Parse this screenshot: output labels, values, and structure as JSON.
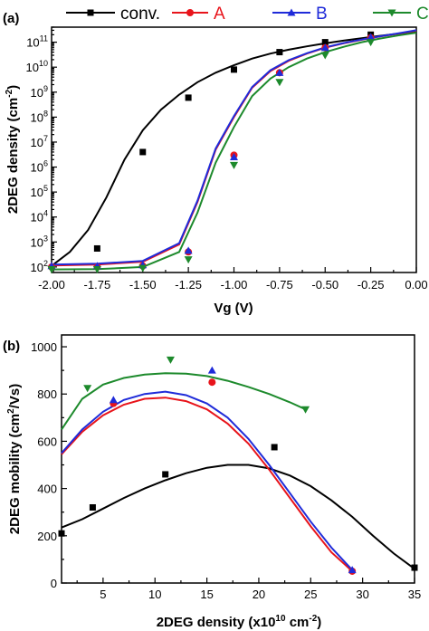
{
  "chart_data": [
    {
      "type": "line",
      "panel_label": "(a)",
      "xlabel": "Vg (V)",
      "ylabel": "2DEG density (cm",
      "ylabel_sup": "-2",
      "ylabel_close": ")",
      "yscale": "log",
      "xlim": [
        -2.0,
        0.0
      ],
      "ylim": [
        60,
        400000000000
      ],
      "x_tick_labels": [
        "-2.00",
        "-1.75",
        "-1.50",
        "-1.25",
        "-1.00",
        "-0.75",
        "-0.50",
        "-0.25",
        "0.00"
      ],
      "y_tick_labels": [
        "10^2",
        "10^3",
        "10^4",
        "10^5",
        "10^6",
        "10^7",
        "10^8",
        "10^9",
        "10^10",
        "10^11"
      ],
      "legend": {
        "placement": "top",
        "entries": [
          "conv.",
          "A",
          "B",
          "C"
        ]
      },
      "series": [
        {
          "name": "conv.",
          "color": "#000000",
          "marker": "square",
          "x": [
            -1.75,
            -1.5,
            -1.25,
            -1.0,
            -0.75,
            -0.5,
            -0.25
          ],
          "y": [
            550,
            4000000,
            600000000,
            8000000000,
            40000000000,
            100000000000,
            200000000000
          ],
          "fit_x": [
            -2.0,
            -1.9,
            -1.8,
            -1.7,
            -1.6,
            -1.5,
            -1.4,
            -1.3,
            -1.2,
            -1.1,
            -1.0,
            -0.9,
            -0.8,
            -0.7,
            -0.6,
            -0.5,
            -0.4,
            -0.3,
            -0.2,
            -0.1,
            0.0
          ],
          "fit_y": [
            110,
            400,
            3000,
            60000,
            2000000,
            30000000,
            200000000,
            800000000,
            2500000000,
            6000000000,
            12000000000,
            22000000000,
            35000000000,
            50000000000,
            68000000000,
            90000000000,
            115000000000,
            145000000000,
            180000000000,
            220000000000,
            260000000000
          ]
        },
        {
          "name": "A",
          "color": "#e8141b",
          "marker": "circle",
          "x": [
            -2.0,
            -1.75,
            -1.5,
            -1.25,
            -1.0,
            -0.75,
            -0.5,
            -0.25
          ],
          "y": [
            100,
            100,
            110,
            400,
            3000000,
            6000000000,
            60000000000,
            150000000000
          ],
          "fit_x": [
            -2.0,
            -1.75,
            -1.5,
            -1.3,
            -1.2,
            -1.1,
            -1.0,
            -0.9,
            -0.8,
            -0.7,
            -0.6,
            -0.5,
            -0.4,
            -0.3,
            -0.2,
            -0.1,
            0.0
          ],
          "fit_y": [
            115,
            125,
            160,
            800,
            40000,
            5000000,
            100000000,
            1500000000,
            7000000000,
            18000000000,
            35000000000,
            60000000000,
            90000000000,
            125000000000,
            170000000000,
            220000000000,
            290000000000
          ]
        },
        {
          "name": "B",
          "color": "#1f2bd9",
          "marker": "triangle-up",
          "x": [
            -2.0,
            -1.75,
            -1.5,
            -1.25,
            -1.0,
            -0.75,
            -0.5,
            -0.25
          ],
          "y": [
            110,
            110,
            120,
            450,
            2500000,
            6000000000,
            60000000000,
            160000000000
          ],
          "fit_x": [
            -2.0,
            -1.75,
            -1.5,
            -1.3,
            -1.2,
            -1.1,
            -1.0,
            -0.9,
            -0.8,
            -0.7,
            -0.6,
            -0.5,
            -0.4,
            -0.3,
            -0.2,
            -0.1,
            0.0
          ],
          "fit_y": [
            125,
            135,
            175,
            900,
            45000,
            5500000,
            110000000,
            1600000000,
            7500000000,
            19000000000,
            36000000000,
            62000000000,
            92000000000,
            128000000000,
            172000000000,
            225000000000,
            300000000000
          ]
        },
        {
          "name": "C",
          "color": "#1d8a2c",
          "marker": "triangle-down",
          "x": [
            -2.0,
            -1.75,
            -1.5,
            -1.25,
            -1.0,
            -0.75,
            -0.5,
            -0.25
          ],
          "y": [
            80,
            80,
            90,
            200,
            1200000,
            2500000000,
            30000000000,
            100000000000
          ],
          "fit_x": [
            -2.0,
            -1.75,
            -1.5,
            -1.3,
            -1.2,
            -1.1,
            -1.0,
            -0.9,
            -0.8,
            -0.7,
            -0.6,
            -0.5,
            -0.4,
            -0.3,
            -0.2,
            -0.1,
            0.0
          ],
          "fit_y": [
            80,
            82,
            100,
            400,
            15000,
            1500000,
            40000000,
            700000000,
            3500000000,
            10000000000,
            22000000000,
            40000000000,
            65000000000,
            100000000000,
            140000000000,
            185000000000,
            240000000000
          ]
        }
      ]
    },
    {
      "type": "scatter",
      "panel_label": "(b)",
      "xlabel": "2DEG density (x10",
      "xlabel_sup1": "10",
      "xlabel_mid": " cm",
      "xlabel_sup2": "-2",
      "xlabel_close": ")",
      "ylabel": "2DEG mobility (cm",
      "ylabel_sup": "2",
      "ylabel_close": "/Vs)",
      "xlim": [
        1,
        35
      ],
      "ylim": [
        0,
        1050
      ],
      "x_tick_labels": [
        "5",
        "10",
        "15",
        "20",
        "25",
        "30",
        "35"
      ],
      "y_tick_labels": [
        "0",
        "200",
        "400",
        "600",
        "800",
        "1000"
      ],
      "series": [
        {
          "name": "conv.",
          "color": "#000000",
          "marker": "square",
          "x": [
            1,
            4,
            11,
            21.5,
            35
          ],
          "y": [
            210,
            320,
            460,
            575,
            65
          ],
          "fit_x": [
            1,
            3,
            5,
            7,
            9,
            11,
            13,
            15,
            17,
            19,
            21,
            23,
            25,
            27,
            29,
            31,
            33,
            35
          ],
          "fit_y": [
            235,
            270,
            315,
            360,
            400,
            435,
            465,
            488,
            500,
            500,
            485,
            455,
            410,
            350,
            280,
            200,
            125,
            60
          ]
        },
        {
          "name": "A",
          "color": "#e8141b",
          "marker": "circle",
          "x": [
            6,
            15.5,
            29
          ],
          "y": [
            760,
            850,
            50
          ],
          "fit_x": [
            1,
            3,
            5,
            7,
            9,
            11,
            13,
            15,
            17,
            19,
            21,
            23,
            25,
            27,
            29
          ],
          "fit_y": [
            545,
            640,
            710,
            755,
            780,
            785,
            770,
            735,
            675,
            590,
            480,
            360,
            240,
            130,
            50
          ]
        },
        {
          "name": "B",
          "color": "#1f2bd9",
          "marker": "triangle-up",
          "x": [
            6,
            15.5,
            29
          ],
          "y": [
            775,
            900,
            55
          ],
          "fit_x": [
            1,
            3,
            5,
            7,
            9,
            11,
            13,
            15,
            17,
            19,
            21,
            23,
            25,
            27,
            29
          ],
          "fit_y": [
            550,
            650,
            725,
            775,
            800,
            810,
            795,
            760,
            700,
            610,
            500,
            380,
            260,
            150,
            55
          ]
        },
        {
          "name": "C",
          "color": "#1d8a2c",
          "marker": "triangle-down",
          "x": [
            3.5,
            11.5,
            24.5
          ],
          "y": [
            825,
            945,
            735
          ],
          "fit_x": [
            1,
            3,
            5,
            7,
            9,
            11,
            13,
            15,
            17,
            19,
            21,
            23,
            24.5
          ],
          "fit_y": [
            650,
            780,
            840,
            868,
            882,
            888,
            886,
            876,
            856,
            830,
            800,
            765,
            735
          ]
        }
      ]
    }
  ]
}
